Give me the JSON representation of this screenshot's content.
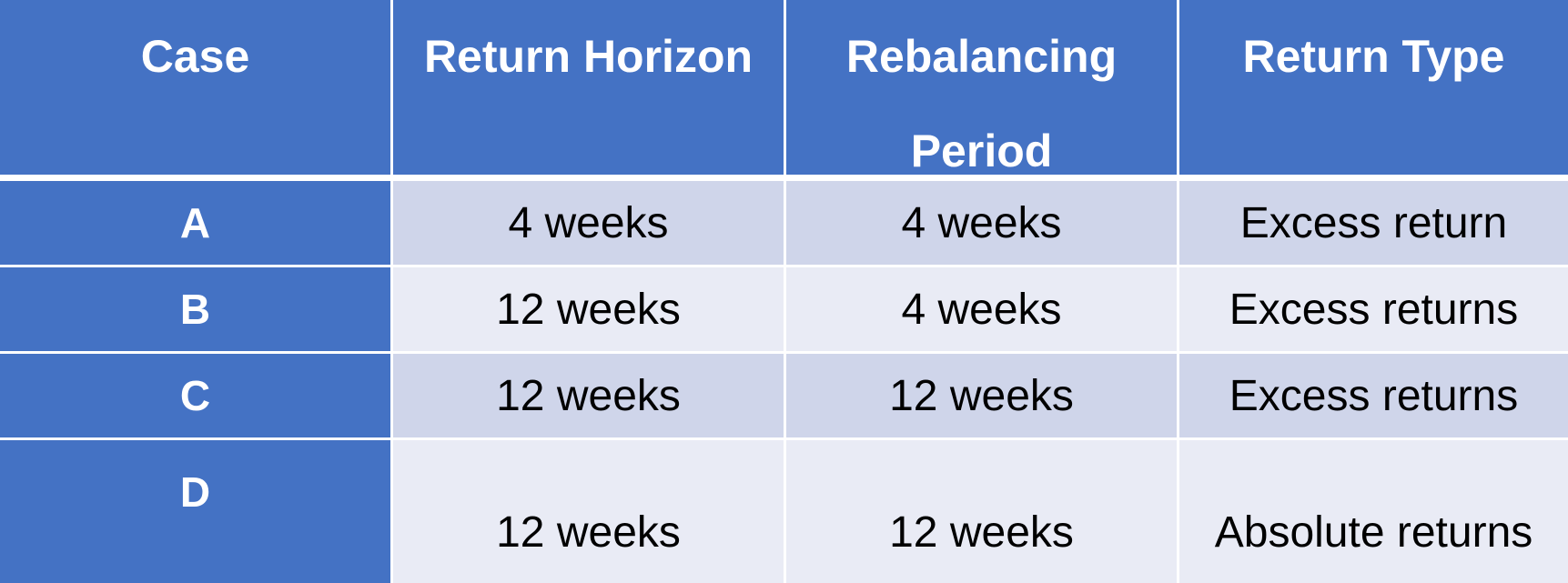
{
  "table": {
    "headers": [
      "Case",
      "Return Horizon",
      "Rebalancing Period",
      "Return Type"
    ],
    "rows": [
      {
        "case": "A",
        "return_horizon": "4 weeks",
        "rebalancing_period": "4 weeks",
        "return_type": "Excess return"
      },
      {
        "case": "B",
        "return_horizon": "12 weeks",
        "rebalancing_period": "4 weeks",
        "return_type": "Excess returns"
      },
      {
        "case": "C",
        "return_horizon": "12 weeks",
        "rebalancing_period": "12 weeks",
        "return_type": "Excess returns"
      },
      {
        "case": "D",
        "return_horizon": "12 weeks",
        "rebalancing_period": "12 weeks",
        "return_type": "Absolute returns"
      }
    ]
  },
  "colors": {
    "header_bg": "#4472c4",
    "header_text": "#ffffff",
    "band_dark": "#cfd5ea",
    "band_light": "#e9ebf5",
    "grid_line": "#ffffff"
  }
}
